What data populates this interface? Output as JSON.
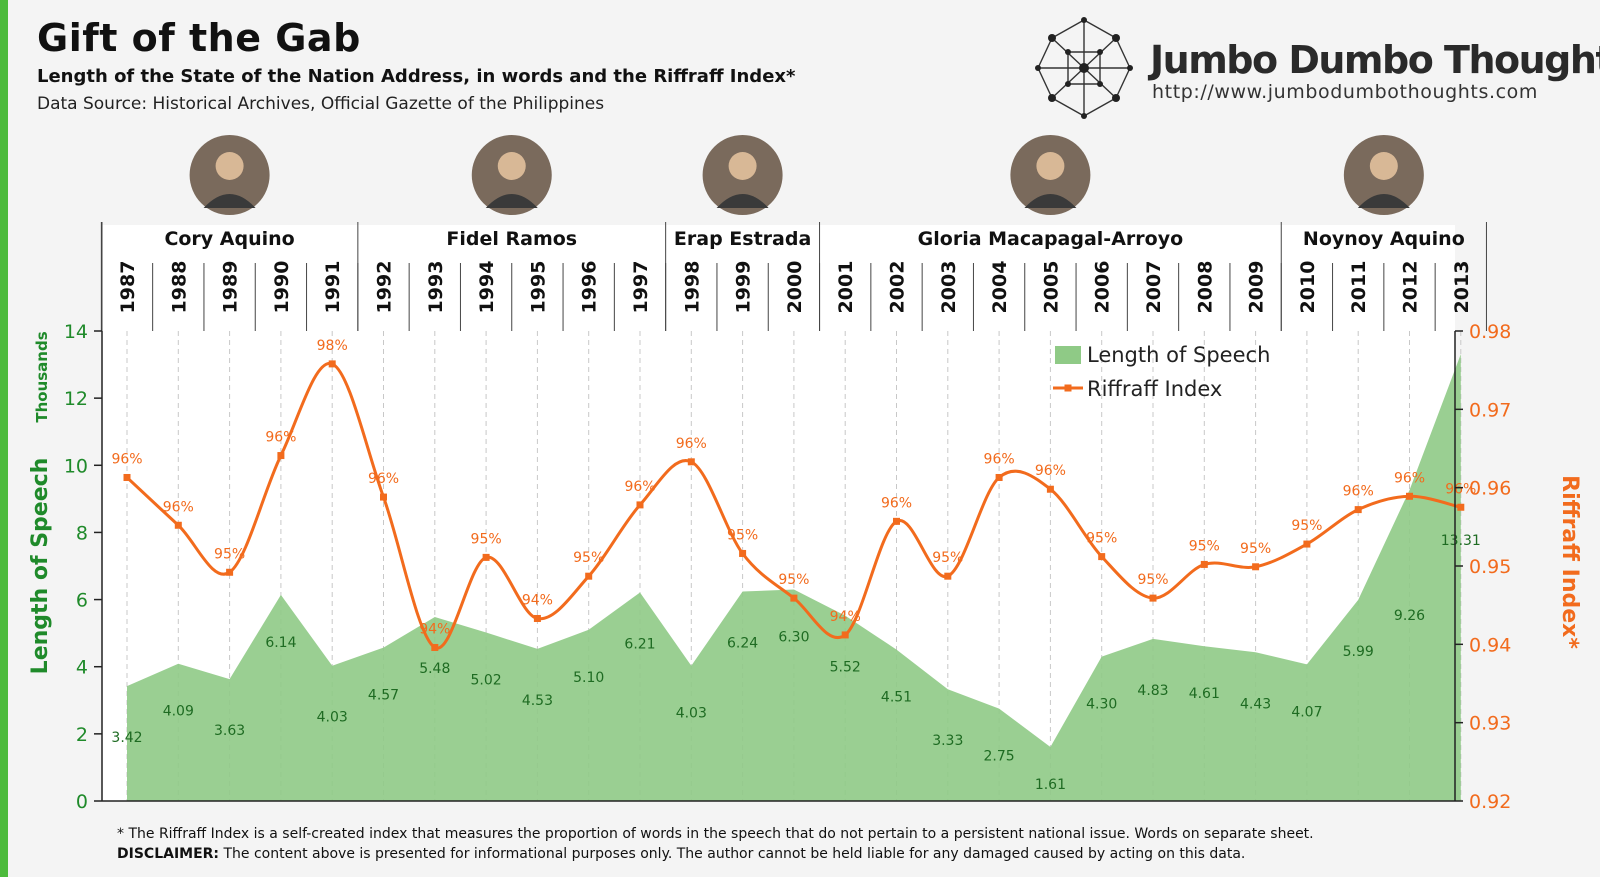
{
  "header": {
    "title": "Gift of the Gab",
    "subtitle": "Length of the State of the Nation Address, in words and the Riffraff Index*",
    "source": "Data Source: Historical Archives, Official Gazette of the Philippines"
  },
  "brand": {
    "name": "Jumbo Dumbo Thoughts",
    "url": "http://www.jumbodumbothoughts.com"
  },
  "footer": {
    "footnote": "* The Riffraff Index is a self-created index that measures the proportion of words in the speech that do not pertain to a persistent national issue. Words on separate sheet.",
    "disclaimer_label": "DISCLAIMER:",
    "disclaimer_text": " The content above is presented for informational purposes only. The author cannot be held liable for any damaged caused by acting on this data."
  },
  "colors": {
    "area": "#8fca86",
    "line": "#f26b1d",
    "left_axis": "#1f8a2a",
    "right_axis": "#f26b1d"
  },
  "chart_data": {
    "type": "area",
    "x": [
      "1987",
      "1988",
      "1989",
      "1990",
      "1991",
      "1992",
      "1993",
      "1994",
      "1995",
      "1996",
      "1997",
      "1998",
      "1999",
      "2000",
      "2001",
      "2002",
      "2003",
      "2004",
      "2005",
      "2006",
      "2007",
      "2008",
      "2009",
      "2010",
      "2011",
      "2012",
      "2013"
    ],
    "presidents": [
      {
        "name": "Cory Aquino",
        "from": "1987",
        "to": "1991"
      },
      {
        "name": "Fidel Ramos",
        "from": "1992",
        "to": "1997"
      },
      {
        "name": "Erap Estrada",
        "from": "1998",
        "to": "2000"
      },
      {
        "name": "Gloria Macapagal-Arroyo",
        "from": "2001",
        "to": "2009"
      },
      {
        "name": "Noynoy Aquino",
        "from": "2010",
        "to": "2013"
      }
    ],
    "series": [
      {
        "name": "Length of Speech",
        "type": "area",
        "axis": "left",
        "values": [
          3.42,
          4.09,
          3.63,
          6.14,
          4.03,
          4.57,
          5.48,
          5.02,
          4.53,
          5.1,
          6.21,
          4.03,
          6.24,
          6.3,
          5.52,
          4.51,
          3.33,
          2.75,
          1.61,
          4.3,
          4.83,
          4.61,
          4.43,
          4.07,
          5.99,
          9.26,
          13.31
        ],
        "labels": [
          "3.42",
          "4.09",
          "3.63",
          "6.14",
          "4.03",
          "4.57",
          "5.48",
          "5.02",
          "4.53",
          "5.10",
          "6.21",
          "4.03",
          "6.24",
          "6.30",
          "5.52",
          "4.51",
          "3.33",
          "2.75",
          "1.61",
          "4.30",
          "4.83",
          "4.61",
          "4.43",
          "4.07",
          "5.99",
          "9.26",
          "13.31"
        ]
      },
      {
        "name": "Riffraff Index",
        "type": "line",
        "axis": "right",
        "values": [
          0.9613,
          0.9552,
          0.9492,
          0.9641,
          0.9758,
          0.9588,
          0.9396,
          0.9511,
          0.9433,
          0.9487,
          0.9578,
          0.9633,
          0.9516,
          0.9459,
          0.9412,
          0.9557,
          0.9487,
          0.9613,
          0.9598,
          0.9512,
          0.9459,
          0.9502,
          0.9499,
          0.9528,
          0.9572,
          0.9589,
          0.9575
        ],
        "labels": [
          "96%",
          "96%",
          "95%",
          "96%",
          "98%",
          "96%",
          "94%",
          "95%",
          "94%",
          "95%",
          "96%",
          "96%",
          "95%",
          "95%",
          "94%",
          "96%",
          "95%",
          "96%",
          "96%",
          "95%",
          "95%",
          "95%",
          "95%",
          "95%",
          "96%",
          "96%",
          "96%"
        ]
      }
    ],
    "y_left": {
      "label": "Length of Speech",
      "unit": "Thousands",
      "range": [
        0,
        14
      ],
      "ticks": [
        "0",
        "2",
        "4",
        "6",
        "8",
        "10",
        "12",
        "14"
      ]
    },
    "y_right": {
      "label": "Riffraff Index*",
      "range": [
        0.92,
        0.98
      ],
      "ticks": [
        "0.92",
        "0.93",
        "0.94",
        "0.95",
        "0.96",
        "0.97",
        "0.98"
      ]
    },
    "legend": {
      "position": "top-right",
      "entries": [
        "Length of Speech",
        "Riffraff Index"
      ]
    },
    "grid": "vertical dashed lines per year"
  }
}
